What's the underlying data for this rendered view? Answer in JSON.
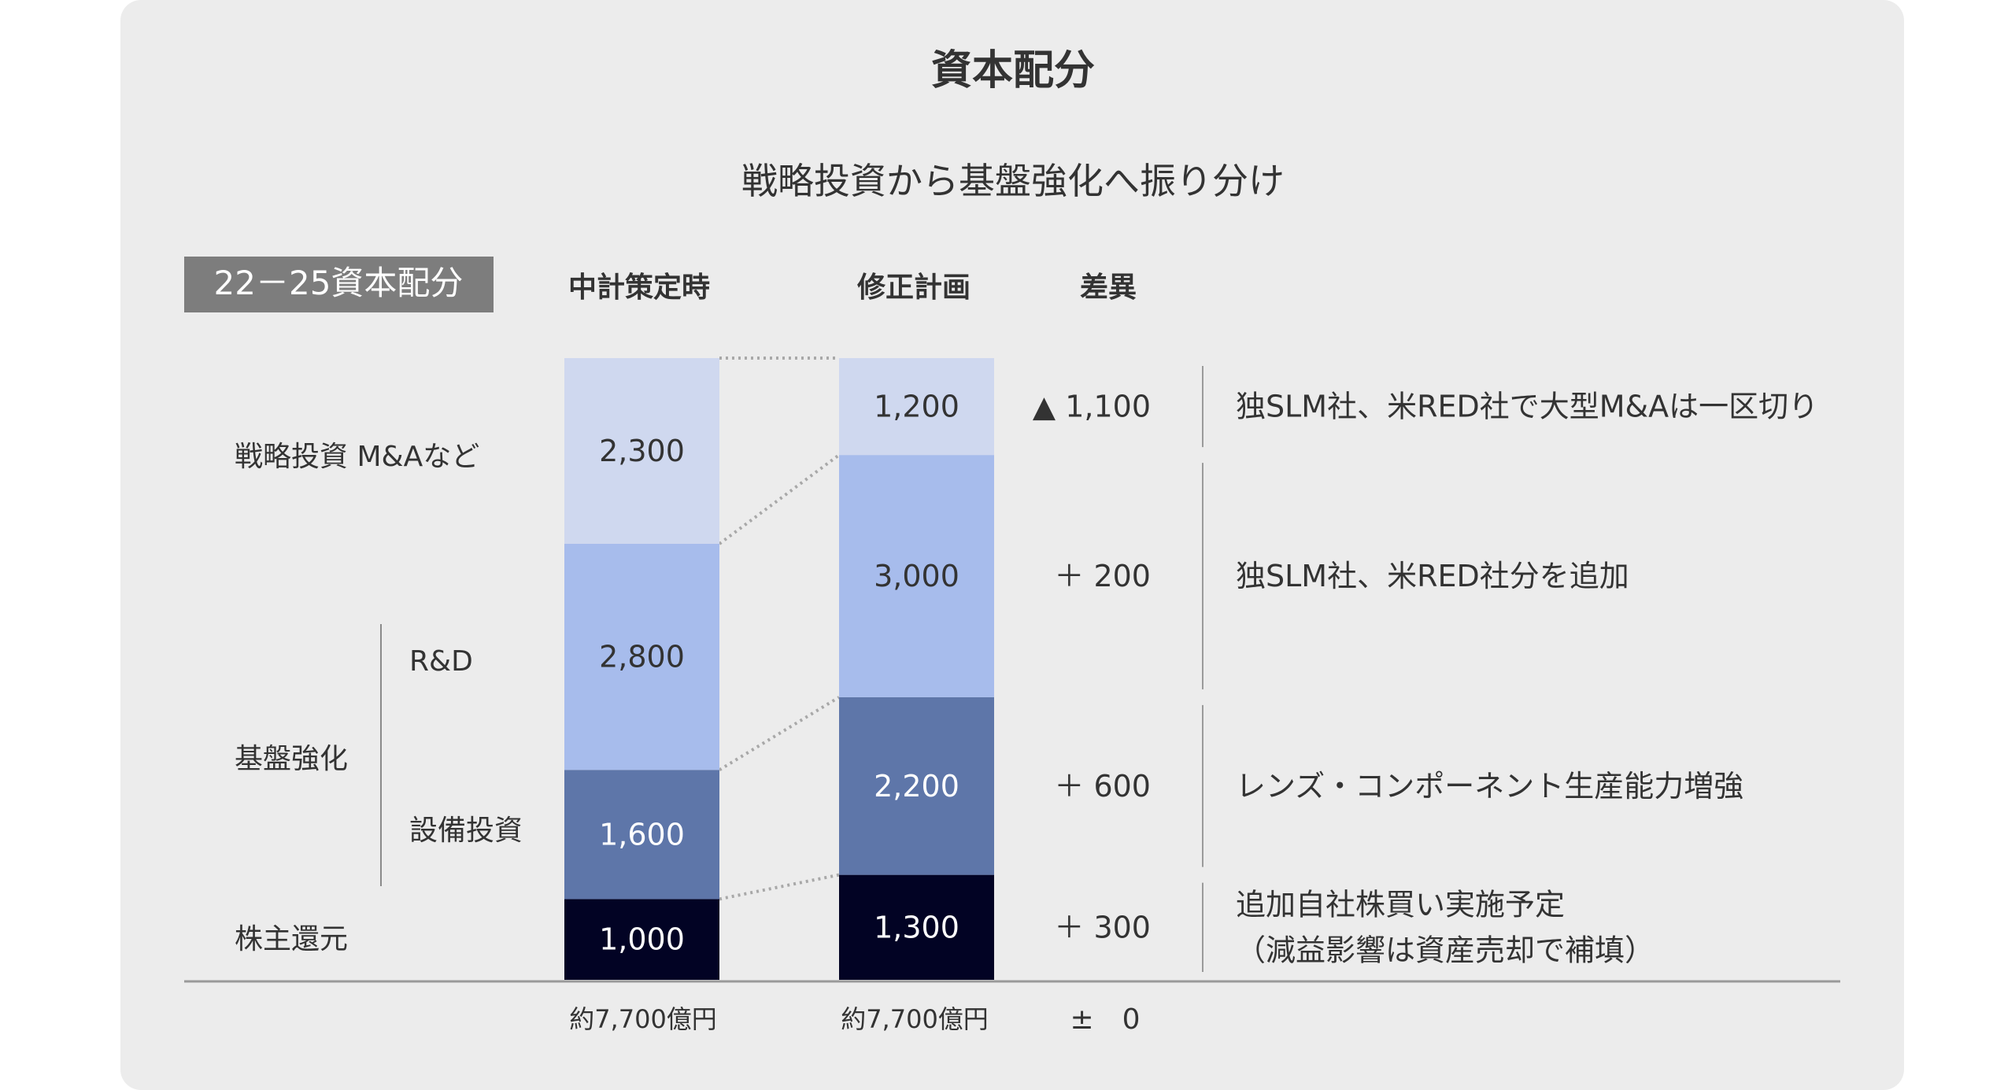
{
  "chart_data": {
    "type": "bar",
    "stacked": true,
    "title": "資本配分",
    "subtitle": "戦略投資から基盤強化へ振り分け",
    "period_label": "22－25資本配分",
    "categories": [
      "中計策定時",
      "修正計画"
    ],
    "difference_header": "差異",
    "group_label": "基盤強化",
    "series": [
      {
        "name": "株主還元",
        "values": [
          1000,
          1300
        ],
        "labels": [
          "1,000",
          "1,300"
        ],
        "diff": "＋ 300",
        "note_lines": [
          "追加自社株買い実施予定",
          "（減益影響は資産売却で補填）"
        ],
        "color": "#020324",
        "text_color": "#ffffff"
      },
      {
        "name": "設備投資",
        "values": [
          1600,
          2200
        ],
        "labels": [
          "1,600",
          "2,200"
        ],
        "diff": "＋ 600",
        "note_lines": [
          "レンズ・コンポーネント生産能力増強"
        ],
        "color": "#5e76a9",
        "text_color": "#ffffff"
      },
      {
        "name": "R&D",
        "values": [
          2800,
          3000
        ],
        "labels": [
          "2,800",
          "3,000"
        ],
        "diff": "＋ 200",
        "note_lines": [
          "独SLM社、米RED社分を追加"
        ],
        "color": "#a7bcec",
        "text_color": "#333333"
      },
      {
        "name": "戦略投資 M&Aなど",
        "values": [
          2300,
          1200
        ],
        "labels": [
          "2,300",
          "1,200"
        ],
        "diff": "▲ 1,100",
        "note_lines": [
          "独SLM社、米RED社で大型M&Aは一区切り"
        ],
        "color": "#cfd8ef",
        "text_color": "#333333"
      }
    ],
    "totals": [
      "約7,700億円",
      "約7,700億円"
    ],
    "total_diff": "±　0"
  }
}
